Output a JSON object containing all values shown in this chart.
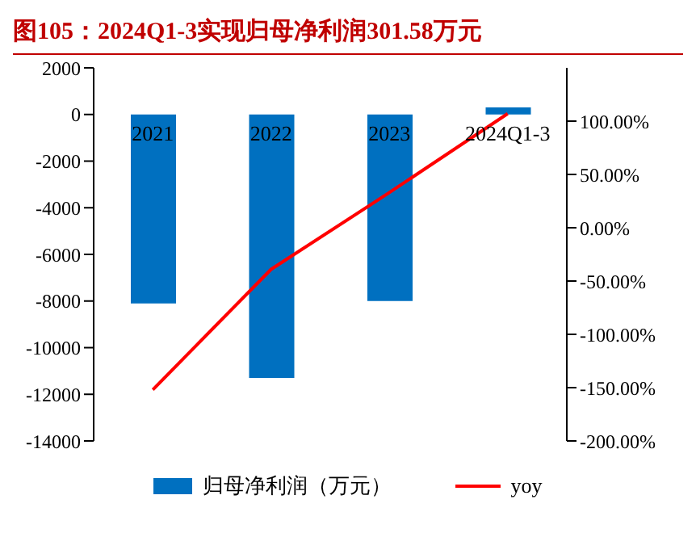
{
  "chart_data": {
    "type": "bar",
    "title": "图105：2024Q1-3实现归母净利润301.58万元",
    "categories": [
      "2021",
      "2022",
      "2023",
      "2024Q1-3"
    ],
    "series": [
      {
        "name": "归母净利润（万元）",
        "color": "#0070c0",
        "values": [
          -8100,
          -11300,
          -8000,
          301.58
        ]
      },
      {
        "name": "yoy",
        "type": "line",
        "axis": "y2",
        "color": "#ff0000",
        "values": [
          -152,
          -39,
          33,
          107
        ]
      }
    ],
    "ylim": [
      -14000,
      2000
    ],
    "yticks": [
      -14000,
      -12000,
      -10000,
      -8000,
      -6000,
      -4000,
      -2000,
      0,
      2000
    ],
    "y2lim": [
      -200,
      150
    ],
    "y2ticks": [
      {
        "value": -200,
        "label": "-200.00%"
      },
      {
        "value": -150,
        "label": "-150.00%"
      },
      {
        "value": -100,
        "label": "-100.00%"
      },
      {
        "value": -50,
        "label": "-50.00%"
      },
      {
        "value": 0,
        "label": "0.00%"
      },
      {
        "value": 50,
        "label": "50.00%"
      },
      {
        "value": 100,
        "label": "100.00%"
      }
    ],
    "legend": "bottom",
    "marker": "none"
  }
}
